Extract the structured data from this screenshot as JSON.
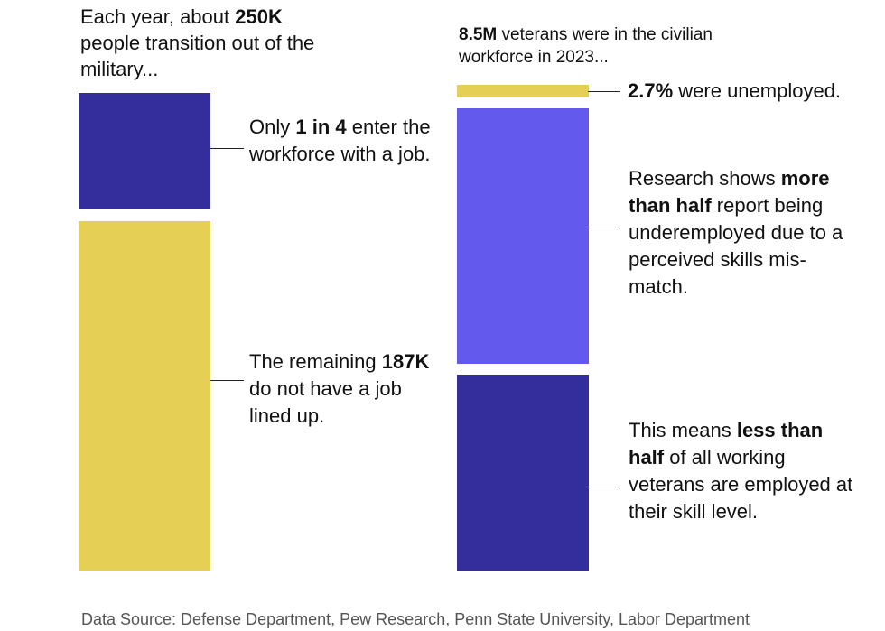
{
  "colors": {
    "navy": "#342E9C",
    "yellow": "#E6CF55",
    "violet": "#6359EC"
  },
  "left": {
    "heading": {
      "pre": "Each year, about ",
      "bold": "250K",
      "post": "people transition out of the military..."
    },
    "ann_top": {
      "pre": "Only ",
      "bold": "1 in 4",
      "post": " enter the workforce with a job."
    },
    "ann_bottom": {
      "pre": "The remaining ",
      "bold": "187K",
      "post": " do not have a job lined up."
    }
  },
  "right": {
    "heading": {
      "bold": "8.5M",
      "post": " veterans were in the civilian workforce in 2023..."
    },
    "ann_unemployed": {
      "bold": "2.7%",
      "post": " were unemployed."
    },
    "ann_mid": {
      "pre": "Research shows ",
      "bold": "more than half",
      "post": " report being underemployed due to a perceived skills mis-match."
    },
    "ann_bottom": {
      "pre": "This means ",
      "bold": "less than half",
      "post": " of all working veterans are employed at their skill level."
    }
  },
  "footer": "Data Source: Defense Department, Pew Research, Penn State University, Labor Department",
  "chart_data": [
    {
      "type": "bar",
      "title": "Each year, about 250K people transition out of the military...",
      "total": 250000,
      "segments": [
        {
          "name": "Enter the workforce with a job",
          "share": 0.25,
          "color": "navy"
        },
        {
          "name": "Do not have a job lined up",
          "value": 187000,
          "share": 0.75,
          "color": "yellow"
        }
      ]
    },
    {
      "type": "bar",
      "title": "8.5M veterans were in the civilian workforce in 2023...",
      "total": 8500000,
      "segments": [
        {
          "name": "Unemployed",
          "share": 0.027,
          "color": "yellow"
        },
        {
          "name": "Underemployed (skills mis-match)",
          "share": 0.55,
          "color": "violet"
        },
        {
          "name": "Employed at skill level",
          "share": 0.423,
          "color": "navy"
        }
      ]
    }
  ]
}
